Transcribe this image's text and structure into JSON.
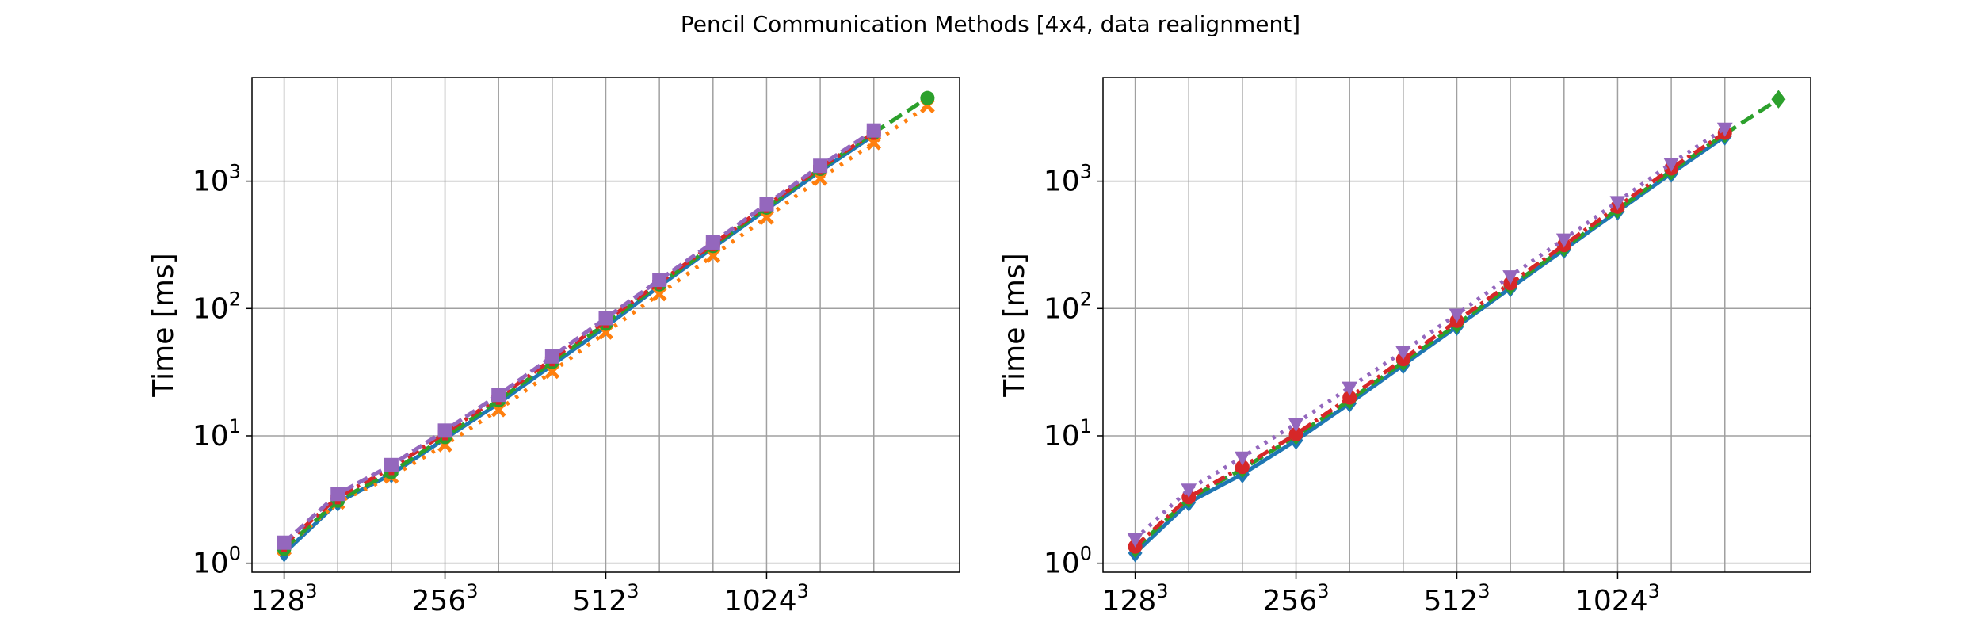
{
  "figure": {
    "suptitle": "Pencil Communication Methods [4x4, data realignment]"
  },
  "chart_data": [
    {
      "type": "line",
      "ylabel": "Time [ms]",
      "yscale": "log",
      "ylim": [
        0.85,
        6500
      ],
      "xlim": [
        -0.6,
        12.6
      ],
      "grid": true,
      "x_ticks": [
        {
          "x": 0,
          "base": "128",
          "exp": "3"
        },
        {
          "x": 3,
          "base": "256",
          "exp": "3"
        },
        {
          "x": 6,
          "base": "512",
          "exp": "3"
        },
        {
          "x": 9,
          "base": "1024",
          "exp": "3"
        }
      ],
      "x_minor_grid": [
        1,
        2,
        4,
        5,
        7,
        8,
        10,
        11
      ],
      "y_ticks": [
        {
          "value": 1,
          "base": "10",
          "exp": "0"
        },
        {
          "value": 10,
          "base": "10",
          "exp": "1"
        },
        {
          "value": 100,
          "base": "10",
          "exp": "2"
        },
        {
          "value": 1000,
          "base": "10",
          "exp": "3"
        }
      ],
      "series": [
        {
          "color": "#1f77b4",
          "dash": "",
          "marker": "diamond",
          "x": [
            0,
            1,
            2,
            3,
            4,
            5,
            6,
            7,
            8,
            9,
            10,
            11
          ],
          "values": [
            1.2,
            3.0,
            5.0,
            9.5,
            18,
            36,
            72,
            150,
            300,
            600,
            1200,
            2300
          ]
        },
        {
          "color": "#ff7f0e",
          "dash": "4 10",
          "marker": "x",
          "x": [
            0,
            1,
            2,
            3,
            4,
            5,
            6,
            7,
            8,
            9,
            10,
            11,
            12
          ],
          "values": [
            1.3,
            3.0,
            4.8,
            8.5,
            16,
            32,
            65,
            130,
            260,
            520,
            1050,
            2000,
            3900
          ]
        },
        {
          "color": "#2ca02c",
          "dash": "18 8",
          "marker": "circle",
          "x": [
            0,
            1,
            2,
            3,
            4,
            5,
            6,
            7,
            8,
            9,
            10,
            11,
            12
          ],
          "values": [
            1.3,
            3.1,
            5.2,
            9.8,
            19,
            38,
            76,
            155,
            310,
            620,
            1250,
            2400,
            4500
          ]
        },
        {
          "color": "#d62728",
          "dash": "16 6 4 6",
          "marker": "cross",
          "x": [
            0,
            1,
            2,
            3,
            4,
            5,
            6,
            7,
            8,
            9,
            10,
            11
          ],
          "values": [
            1.4,
            3.3,
            5.6,
            10.5,
            20,
            40,
            80,
            160,
            320,
            640,
            1280,
            2400
          ]
        },
        {
          "color": "#9467bd",
          "dash": "14 6",
          "marker": "square",
          "x": [
            0,
            1,
            2,
            3,
            4,
            5,
            6,
            7,
            8,
            9,
            10,
            11
          ],
          "values": [
            1.45,
            3.5,
            5.9,
            11,
            21,
            42,
            84,
            168,
            330,
            660,
            1320,
            2500
          ]
        }
      ]
    },
    {
      "type": "line",
      "ylabel": "Time [ms]",
      "yscale": "log",
      "ylim": [
        0.85,
        6500
      ],
      "xlim": [
        -0.6,
        12.6
      ],
      "grid": true,
      "x_ticks": [
        {
          "x": 0,
          "base": "128",
          "exp": "3"
        },
        {
          "x": 3,
          "base": "256",
          "exp": "3"
        },
        {
          "x": 6,
          "base": "512",
          "exp": "3"
        },
        {
          "x": 9,
          "base": "1024",
          "exp": "3"
        }
      ],
      "x_minor_grid": [
        1,
        2,
        4,
        5,
        7,
        8,
        10,
        11
      ],
      "y_ticks": [
        {
          "value": 1,
          "base": "10",
          "exp": "0"
        },
        {
          "value": 10,
          "base": "10",
          "exp": "1"
        },
        {
          "value": 100,
          "base": "10",
          "exp": "2"
        },
        {
          "value": 1000,
          "base": "10",
          "exp": "3"
        }
      ],
      "series": [
        {
          "color": "#1f77b4",
          "dash": "",
          "marker": "diamond",
          "x": [
            0,
            1,
            2,
            3,
            4,
            5,
            6,
            7,
            8,
            9,
            10,
            11
          ],
          "values": [
            1.2,
            3.0,
            5.0,
            9.2,
            18,
            36,
            72,
            145,
            290,
            580,
            1150,
            2250
          ]
        },
        {
          "color": "#2ca02c",
          "dash": "18 8",
          "marker": "diamond",
          "x": [
            0,
            1,
            2,
            3,
            4,
            5,
            6,
            7,
            8,
            9,
            10,
            11,
            12
          ],
          "values": [
            1.3,
            3.2,
            5.5,
            10,
            19,
            38,
            75,
            150,
            300,
            600,
            1200,
            2350,
            4400
          ]
        },
        {
          "color": "#d62728",
          "dash": "16 6 4 6",
          "marker": "circle",
          "x": [
            0,
            1,
            2,
            3,
            4,
            5,
            6,
            7,
            8,
            9,
            10,
            11
          ],
          "values": [
            1.35,
            3.3,
            5.7,
            10.3,
            20,
            40,
            80,
            158,
            315,
            630,
            1260,
            2400
          ]
        },
        {
          "color": "#9467bd",
          "dash": "4 8",
          "marker": "triangle-down",
          "x": [
            0,
            1,
            2,
            3,
            4,
            5,
            6,
            7,
            8,
            9,
            10,
            11
          ],
          "values": [
            1.55,
            3.8,
            6.8,
            12.5,
            24,
            46,
            90,
            180,
            350,
            690,
            1380,
            2600
          ]
        }
      ]
    }
  ]
}
